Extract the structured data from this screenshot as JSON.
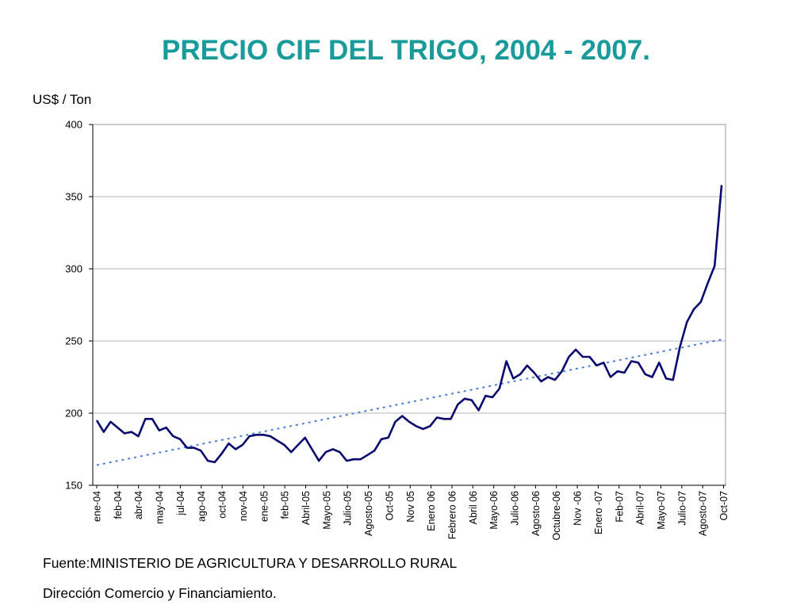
{
  "title": "PRECIO CIF DEL TRIGO, 2004 - 2007.",
  "source_line1": "Fuente:MINISTERIO DE AGRICULTURA Y DESARROLLO RURAL",
  "source_line2": "Dirección Comercio y Financiamiento.",
  "chart_data": {
    "type": "line",
    "title": "PRECIO CIF DEL TRIGO, 2004 - 2007.",
    "ylabel": "US$ / Ton",
    "xlabel": "",
    "ylim": [
      150,
      400
    ],
    "yticks": [
      150,
      200,
      250,
      300,
      350,
      400
    ],
    "grid": true,
    "x_tick_labels": [
      "ene-04",
      "feb-04",
      "abr-04",
      "may-04",
      "jul-04",
      "ago-04",
      "oct-04",
      "nov-04",
      "ene-05",
      "feb-05",
      "Abril-05",
      "Mayo-05",
      "Julio-05",
      "Agosto-05",
      "Oct-05",
      "Nov 05",
      "Enero 06",
      "Febrero 06",
      "Abril  06",
      "Mayo-06",
      "Julio-06",
      "Agosto-06",
      "Octubre-06",
      "Nov -06",
      "Enero -07",
      "Feb-07",
      "Abril-07",
      "Mayo-07",
      "Julio-07",
      "Agosto-07",
      "Oct-07"
    ],
    "series": [
      {
        "color": "#0a0a6e",
        "values": [
          195,
          187,
          194,
          190,
          186,
          187,
          184,
          196,
          196,
          188,
          190,
          184,
          182,
          176,
          176,
          174,
          167,
          166,
          172,
          179,
          175,
          178,
          184,
          185,
          185,
          184,
          181,
          178,
          173,
          178,
          183,
          175,
          167,
          173,
          175,
          173,
          167,
          168,
          168,
          171,
          174,
          182,
          183,
          194,
          198,
          194,
          191,
          189,
          191,
          197,
          196,
          196,
          206,
          210,
          209,
          202,
          212,
          211,
          217,
          236,
          224,
          227,
          233,
          228,
          222,
          225,
          223,
          229,
          239,
          244,
          239,
          239,
          233,
          235,
          225,
          229,
          228,
          236,
          235,
          227,
          225,
          235,
          224,
          223,
          246,
          263,
          272,
          277,
          290,
          302,
          358
        ]
      }
    ],
    "trendline": {
      "type": "linear",
      "style": "dotted",
      "color": "#4a7fd8",
      "start": 164,
      "end": 251
    }
  }
}
